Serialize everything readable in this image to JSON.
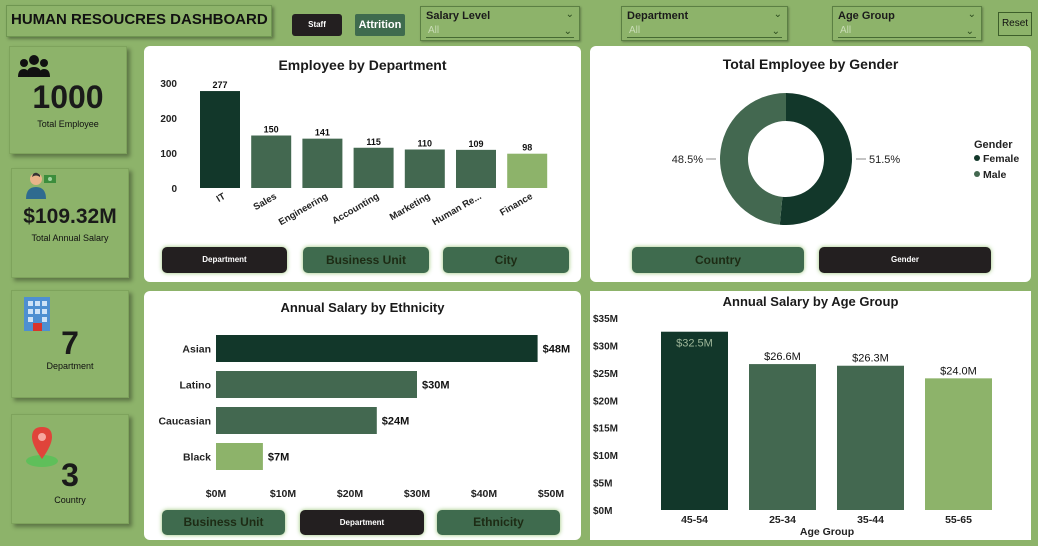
{
  "header": {
    "title": "HUMAN RESOUCRES DASHBOARD",
    "staff_label": "Staff",
    "attrition_label": "Attrition",
    "reset_label": "Reset"
  },
  "slicers": [
    {
      "label": "Salary Level",
      "value": "All"
    },
    {
      "label": "Department",
      "value": "All"
    },
    {
      "label": "Age Group",
      "value": "All"
    }
  ],
  "kpis": {
    "employees": {
      "value": "1000",
      "label": "Total Employee",
      "icon": "people-icon"
    },
    "salary": {
      "value": "$109.32M",
      "label": "Total Annual Salary",
      "icon": "money-person-icon"
    },
    "department": {
      "value": "7",
      "label": "Department",
      "icon": "building-icon"
    },
    "country": {
      "value": "3",
      "label": "Country",
      "icon": "map-pin-icon"
    }
  },
  "department_panel": {
    "buttons": [
      "Department",
      "Business Unit",
      "City"
    ]
  },
  "gender_panel": {
    "buttons": [
      "Country",
      "Gender"
    ]
  },
  "ethnicity_panel": {
    "buttons": [
      "Business Unit",
      "Department",
      "Ethnicity"
    ]
  },
  "colors": {
    "dark": "#12372a",
    "mid": "#436850",
    "light": "#8db36a",
    "background": "#8db36a"
  },
  "chart_data": [
    {
      "type": "bar",
      "title": "Employee by Department",
      "categories": [
        "IT",
        "Sales",
        "Engineering",
        "Accounting",
        "Marketing",
        "Human Re...",
        "Finance"
      ],
      "values": [
        277,
        150,
        141,
        115,
        110,
        109,
        98
      ],
      "data_labels": [
        "277",
        "150",
        "141",
        "115",
        "110",
        "109",
        "98"
      ],
      "yticks": [
        "300",
        "200",
        "100",
        "0"
      ],
      "ylim": [
        0,
        300
      ],
      "xlabel": "",
      "ylabel": ""
    },
    {
      "type": "pie",
      "title": "Total Employee by Gender",
      "categories": [
        "Female",
        "Male"
      ],
      "values": [
        51.5,
        48.5
      ],
      "data_labels": [
        "51.5%",
        "48.5%"
      ],
      "legend_title": "Gender",
      "legend_position": "right"
    },
    {
      "type": "bar",
      "orientation": "horizontal",
      "title": "Annual Salary by Ethnicity",
      "categories": [
        "Asian",
        "Latino",
        "Caucasian",
        "Black"
      ],
      "values": [
        48,
        30,
        24,
        7
      ],
      "data_labels": [
        "$48M",
        "$30M",
        "$24M",
        "$7M"
      ],
      "xticks": [
        "$0M",
        "$10M",
        "$20M",
        "$30M",
        "$40M",
        "$50M"
      ],
      "xlim": [
        0,
        50
      ]
    },
    {
      "type": "bar",
      "title": "Annual Salary by Age Group",
      "categories": [
        "45-54",
        "25-34",
        "35-44",
        "55-65"
      ],
      "values": [
        32.5,
        26.6,
        26.3,
        24.0
      ],
      "data_labels": [
        "$32.5M",
        "$26.6M",
        "$26.3M",
        "$24.0M"
      ],
      "yticks": [
        "$35M",
        "$30M",
        "$25M",
        "$20M",
        "$15M",
        "$10M",
        "$5M",
        "$0M"
      ],
      "ylim": [
        0,
        35
      ],
      "xlabel": "Age Group",
      "ylabel": ""
    }
  ]
}
